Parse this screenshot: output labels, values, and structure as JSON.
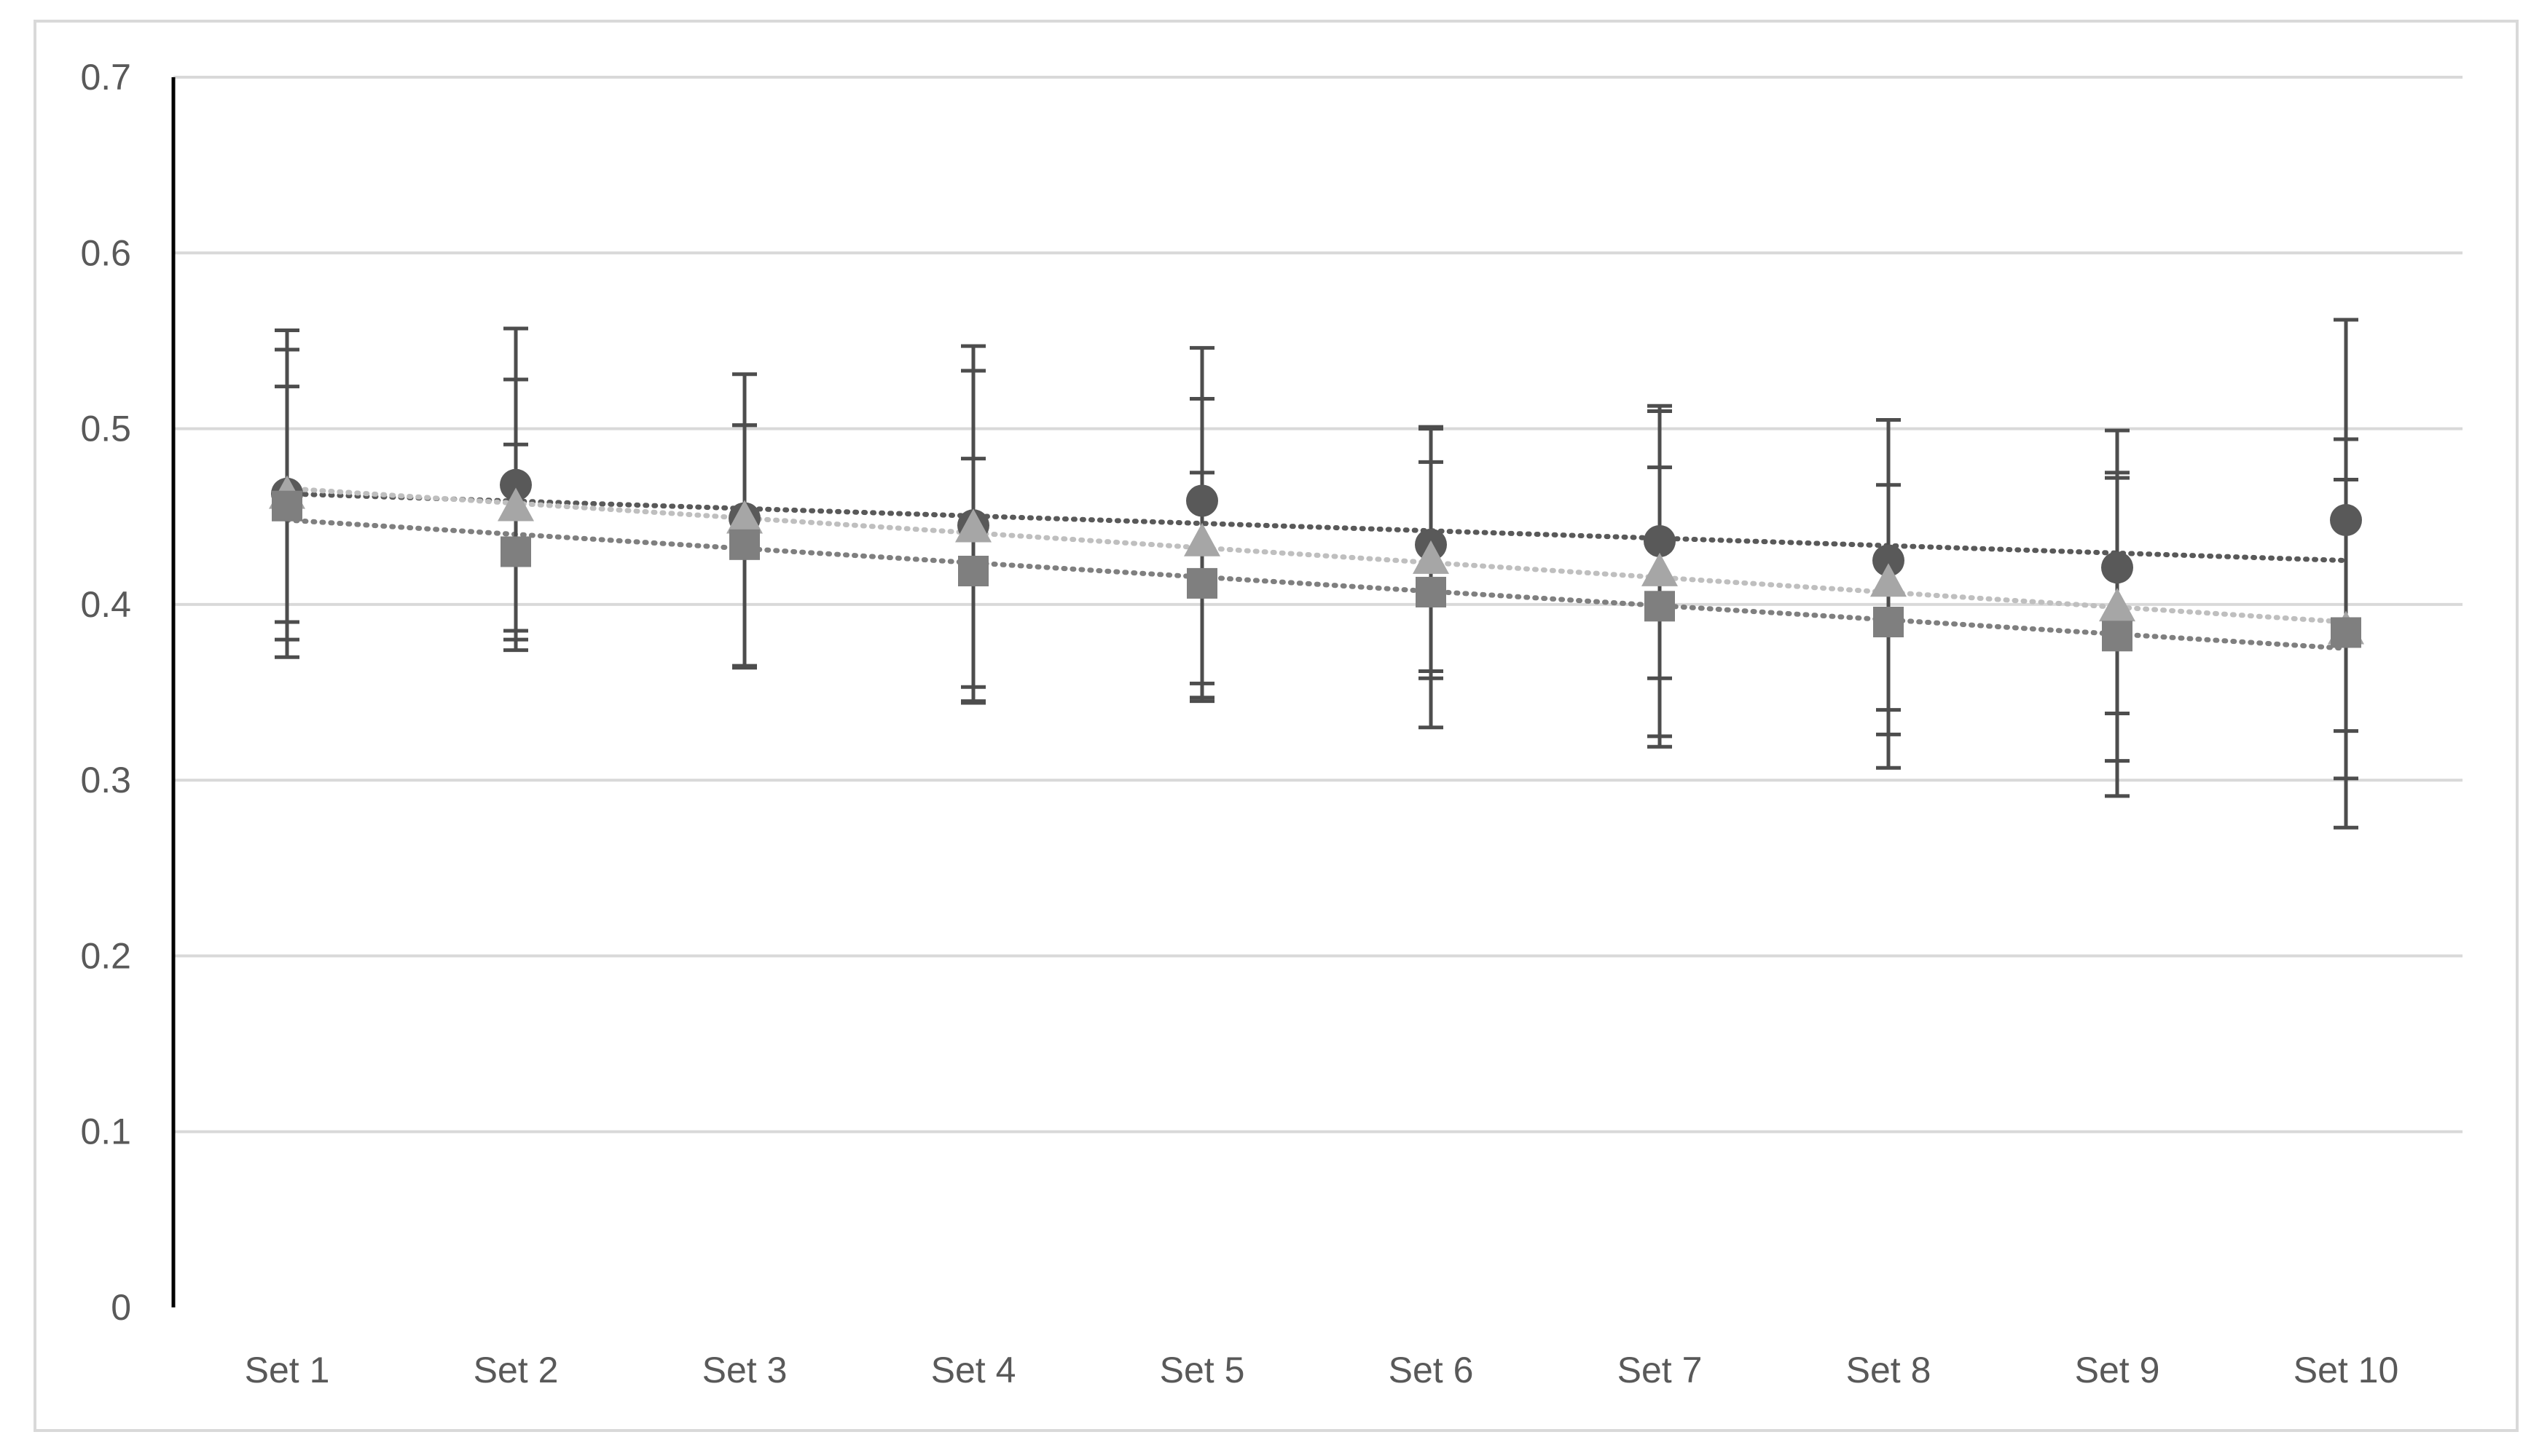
{
  "chart_data": {
    "type": "scatter",
    "title": "",
    "xlabel": "",
    "ylabel": "",
    "categories": [
      "Set 1",
      "Set 2",
      "Set 3",
      "Set 4",
      "Set 5",
      "Set 6",
      "Set 7",
      "Set 8",
      "Set 9",
      "Set 10"
    ],
    "ylim": [
      0,
      0.7
    ],
    "yticks": [
      "0",
      "0.1",
      "0.2",
      "0.3",
      "0.4",
      "0.5",
      "0.6",
      "0.7"
    ],
    "grid": true,
    "legend": "none",
    "series": [
      {
        "marker": "circle",
        "color": "#595959",
        "trend_color": "#595959",
        "values": [
          0.463,
          0.468,
          0.449,
          0.445,
          0.459,
          0.434,
          0.436,
          0.425,
          0.421,
          0.448
        ],
        "error_low": [
          0.38,
          0.385,
          0.365,
          0.353,
          0.355,
          0.33,
          0.325,
          0.34,
          0.311,
          0.301
        ],
        "error_high": [
          0.545,
          0.528,
          0.502,
          0.533,
          0.517,
          0.5,
          0.51,
          0.505,
          0.475,
          0.494
        ],
        "trend": [
          0.463,
          0.425
        ]
      },
      {
        "marker": "triangle",
        "color": "#a6a6a6",
        "trend_color": "#bfbfbf",
        "values": [
          0.462,
          0.455,
          0.448,
          0.443,
          0.435,
          0.425,
          0.418,
          0.412,
          0.398,
          0.385
        ],
        "error_low": [
          0.37,
          0.38,
          0.364,
          0.345,
          0.345,
          0.358,
          0.358,
          0.326,
          0.338,
          0.328
        ],
        "error_high": [
          0.556,
          0.557,
          0.531,
          0.547,
          0.546,
          0.501,
          0.513,
          0.505,
          0.499,
          0.562
        ],
        "trend": [
          0.466,
          0.39
        ]
      },
      {
        "marker": "square",
        "color": "#7f7f7f",
        "trend_color": "#7f7f7f",
        "values": [
          0.456,
          0.43,
          0.434,
          0.419,
          0.412,
          0.407,
          0.399,
          0.39,
          0.382,
          0.384
        ],
        "error_low": [
          0.39,
          0.374,
          0.365,
          0.344,
          0.347,
          0.362,
          0.319,
          0.307,
          0.291,
          0.273
        ],
        "error_high": [
          0.524,
          0.491,
          0.502,
          0.483,
          0.475,
          0.481,
          0.478,
          0.468,
          0.472,
          0.471
        ],
        "trend": [
          0.448,
          0.375
        ]
      }
    ]
  }
}
